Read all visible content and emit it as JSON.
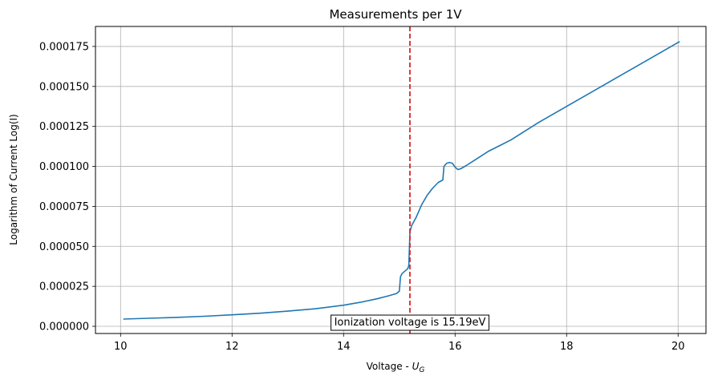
{
  "chart_data": {
    "type": "line",
    "title": "Measurements per 1V",
    "xlabel_main": "Voltage - ",
    "xlabel_symbol": "U",
    "xlabel_subscript": "G",
    "ylabel": "Logarithm of Current Log(I)",
    "xlim": [
      9.55,
      20.5
    ],
    "ylim": [
      -4.5e-06,
      0.0001875
    ],
    "x_ticks": [
      10,
      12,
      14,
      16,
      18,
      20
    ],
    "x_tick_labels": [
      "10",
      "12",
      "14",
      "16",
      "18",
      "20"
    ],
    "y_ticks": [
      0,
      2.5e-05,
      5e-05,
      7.5e-05,
      0.0001,
      0.000125,
      0.00015,
      0.000175
    ],
    "y_tick_labels": [
      "0.000000",
      "0.000025",
      "0.000050",
      "0.000075",
      "0.000100",
      "0.000125",
      "0.000150",
      "0.000175"
    ],
    "grid": true,
    "series": [
      {
        "color": "#1f77b4",
        "x": [
          10.05,
          10.5,
          11.0,
          11.5,
          12.0,
          12.5,
          13.0,
          13.5,
          14.0,
          14.3,
          14.6,
          14.8,
          14.95,
          15.0,
          15.02,
          15.05,
          15.1,
          15.15,
          15.17,
          15.19,
          15.22,
          15.3,
          15.4,
          15.5,
          15.6,
          15.7,
          15.78,
          15.8,
          15.85,
          15.9,
          15.95,
          16.0,
          16.05,
          16.1,
          16.2,
          16.4,
          16.6,
          16.8,
          17.0,
          17.5,
          18.0,
          18.5,
          19.0,
          19.5,
          20.0,
          20.03
        ],
        "y": [
          4.5e-06,
          5e-06,
          5.6e-06,
          6.3e-06,
          7.2e-06,
          8.2e-06,
          9.5e-06,
          1.1e-05,
          1.32e-05,
          1.5e-05,
          1.72e-05,
          1.9e-05,
          2.05e-05,
          2.2e-05,
          3.1e-05,
          3.3e-05,
          3.45e-05,
          3.6e-05,
          3.8e-05,
          5.9e-05,
          6.3e-05,
          6.8e-05,
          7.6e-05,
          8.2e-05,
          8.65e-05,
          9e-05,
          9.15e-05,
          0.0001,
          0.000102,
          0.0001025,
          0.000102,
          9.95e-05,
          9.8e-05,
          9.85e-05,
          0.0001005,
          0.000105,
          0.0001095,
          0.000113,
          0.0001165,
          0.0001275,
          0.0001375,
          0.0001475,
          0.0001575,
          0.0001675,
          0.0001775,
          0.000178
        ]
      }
    ],
    "vline": {
      "x": 15.19,
      "color": "#d62728",
      "style": "dashed"
    },
    "annotation": {
      "text": "Ionization voltage is 15.19eV",
      "x": 15.19,
      "y": 5e-07
    }
  }
}
